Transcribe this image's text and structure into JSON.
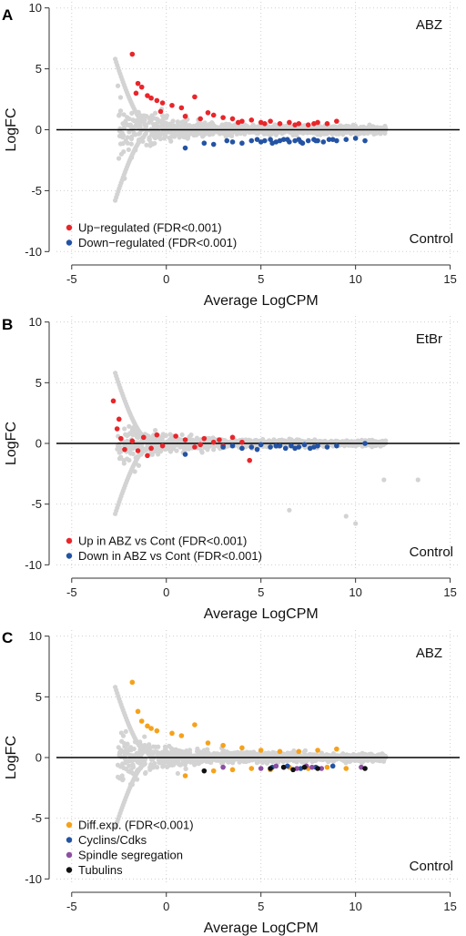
{
  "chart_data": [
    {
      "type": "scatter",
      "panel": "A",
      "xlabel": "Average LogCPM",
      "ylabel": "LogFC",
      "xlim": [
        -6,
        15.5
      ],
      "ylim": [
        -10.5,
        10.5
      ],
      "x_ticks": [
        -5,
        0,
        5,
        10,
        15
      ],
      "y_ticks": [
        -10,
        -5,
        0,
        5,
        10
      ],
      "label_top": "ABZ",
      "label_bottom": "Control",
      "grid": true,
      "legend_position": "bottom-left",
      "background_color": "#d3d3d3",
      "series": [
        {
          "name": "Up−regulated (FDR<0.001)",
          "color": "#e8262b",
          "x": [
            -1.8,
            -1.5,
            -1.3,
            -1.0,
            -0.8,
            -0.5,
            -0.2,
            0.3,
            0.8,
            1.5,
            2.2,
            2.5,
            3.0,
            3.5,
            4.0,
            4.5,
            5.0,
            5.5,
            6.0,
            6.5,
            7.0,
            7.5,
            8.0,
            8.5,
            9.0,
            -1.6,
            -0.3,
            1.0,
            1.8,
            3.8,
            5.2,
            6.8,
            7.8
          ],
          "y": [
            6.2,
            3.8,
            3.5,
            2.8,
            2.6,
            2.4,
            2.2,
            2.0,
            1.8,
            2.7,
            1.4,
            1.2,
            1.0,
            0.9,
            0.7,
            0.8,
            0.6,
            0.7,
            0.5,
            0.6,
            0.5,
            0.4,
            0.6,
            0.5,
            0.7,
            3.0,
            1.5,
            1.1,
            0.9,
            0.6,
            0.5,
            0.4,
            0.5
          ]
        },
        {
          "name": "Down−regulated (FDR<0.001)",
          "color": "#2453a3",
          "x": [
            1.0,
            2.5,
            3.5,
            4.0,
            4.5,
            5.0,
            5.2,
            5.5,
            5.8,
            6.0,
            6.2,
            6.5,
            6.8,
            7.0,
            7.2,
            7.5,
            7.8,
            8.0,
            8.3,
            8.6,
            9.0,
            9.5,
            10.0,
            10.5,
            4.8,
            5.6,
            6.4,
            7.1,
            7.9,
            8.8,
            3.2,
            2.0
          ],
          "y": [
            -1.5,
            -1.2,
            -1.0,
            -1.1,
            -0.9,
            -1.0,
            -0.9,
            -0.8,
            -1.0,
            -0.9,
            -0.8,
            -1.0,
            -0.9,
            -0.8,
            -1.1,
            -0.9,
            -0.8,
            -0.9,
            -1.0,
            -0.8,
            -0.9,
            -0.8,
            -0.7,
            -0.9,
            -0.8,
            -1.1,
            -0.8,
            -1.0,
            -0.9,
            -0.8,
            -0.9,
            -1.1
          ]
        }
      ]
    },
    {
      "type": "scatter",
      "panel": "B",
      "xlabel": "Average LogCPM",
      "ylabel": "LogFC",
      "xlim": [
        -6,
        15.5
      ],
      "ylim": [
        -10.5,
        10.5
      ],
      "x_ticks": [
        -5,
        0,
        5,
        10,
        15
      ],
      "y_ticks": [
        -10,
        -5,
        0,
        5,
        10
      ],
      "label_top": "EtBr",
      "label_bottom": "Control",
      "grid": true,
      "legend_position": "bottom-left",
      "background_color": "#d3d3d3",
      "series": [
        {
          "name": "Up in ABZ vs Cont (FDR<0.001)",
          "color": "#e8262b",
          "x": [
            -2.8,
            -2.6,
            -2.4,
            -2.2,
            -1.5,
            -1.2,
            -1.0,
            -0.8,
            -0.5,
            -0.2,
            0.5,
            1.0,
            1.5,
            2.0,
            2.5,
            3.0,
            3.5,
            4.0,
            4.4,
            -2.5,
            -1.8,
            1.8,
            2.8
          ],
          "y": [
            3.5,
            1.2,
            0.4,
            -0.5,
            -0.6,
            0.5,
            -1.0,
            -0.4,
            0.7,
            -0.2,
            0.6,
            0.3,
            -0.3,
            0.4,
            0.1,
            -0.2,
            0.5,
            0.1,
            -1.4,
            2.0,
            0.2,
            -0.1,
            0.3
          ]
        },
        {
          "name": "Down in ABZ vs Cont (FDR<0.001)",
          "color": "#2453a3",
          "x": [
            1.0,
            3.0,
            3.5,
            4.0,
            4.5,
            5.0,
            5.5,
            6.0,
            6.3,
            6.6,
            7.0,
            7.3,
            7.6,
            8.0,
            8.5,
            9.0,
            10.5,
            4.8,
            5.8,
            6.8,
            7.8
          ],
          "y": [
            -0.9,
            -0.3,
            -0.2,
            -0.4,
            -0.3,
            -0.1,
            -0.3,
            -0.2,
            -0.4,
            -0.2,
            -0.3,
            -0.1,
            -0.4,
            -0.2,
            -0.3,
            -0.2,
            0.0,
            -0.5,
            -0.2,
            -0.4,
            -0.3
          ]
        }
      ]
    },
    {
      "type": "scatter",
      "panel": "C",
      "xlabel": "Average LogCPM",
      "ylabel": "LogFC",
      "xlim": [
        -6,
        15.5
      ],
      "ylim": [
        -10.5,
        10.5
      ],
      "x_ticks": [
        -5,
        0,
        5,
        10,
        15
      ],
      "y_ticks": [
        -10,
        -5,
        0,
        5,
        10
      ],
      "label_top": "ABZ",
      "label_bottom": "Control",
      "grid": true,
      "legend_position": "bottom-left",
      "background_color": "#d3d3d3",
      "series": [
        {
          "name": "Diff.exp. (FDR<0.001)",
          "color": "#f5a21b",
          "x": [
            -1.8,
            -1.5,
            -1.3,
            -1.0,
            -0.8,
            -0.5,
            0.3,
            0.8,
            1.5,
            2.2,
            3.0,
            4.0,
            5.0,
            6.0,
            7.0,
            8.0,
            9.0,
            1.0,
            2.5,
            3.5,
            4.5,
            5.5,
            6.5,
            7.5,
            8.5,
            9.5
          ],
          "y": [
            6.2,
            3.8,
            3.0,
            2.6,
            2.4,
            2.2,
            2.0,
            1.8,
            2.7,
            1.2,
            1.0,
            0.8,
            0.6,
            0.5,
            0.5,
            0.6,
            0.7,
            -1.5,
            -1.1,
            -1.0,
            -0.9,
            -1.0,
            -0.8,
            -0.9,
            -0.8,
            -0.9
          ]
        },
        {
          "name": "Cyclins/Cdks",
          "color": "#2453a3",
          "x": [
            5.6,
            6.4,
            7.1,
            7.9,
            8.8
          ],
          "y": [
            -0.8,
            -0.7,
            -0.9,
            -0.8,
            -0.7
          ]
        },
        {
          "name": "Spindle segregation",
          "color": "#8d4fa3",
          "x": [
            3.0,
            5.0,
            5.8,
            6.2,
            6.9,
            7.4,
            7.7,
            8.2,
            10.3
          ],
          "y": [
            -0.8,
            -0.9,
            -0.7,
            -0.8,
            -0.9,
            -0.7,
            -0.8,
            -0.9,
            -0.8
          ]
        },
        {
          "name": "Tubulins",
          "color": "#111111",
          "x": [
            2.0,
            5.5,
            6.2,
            6.7,
            7.3,
            8.0,
            10.5
          ],
          "y": [
            -1.1,
            -0.9,
            -0.8,
            -1.0,
            -0.8,
            -0.9,
            -0.9
          ]
        }
      ]
    }
  ]
}
